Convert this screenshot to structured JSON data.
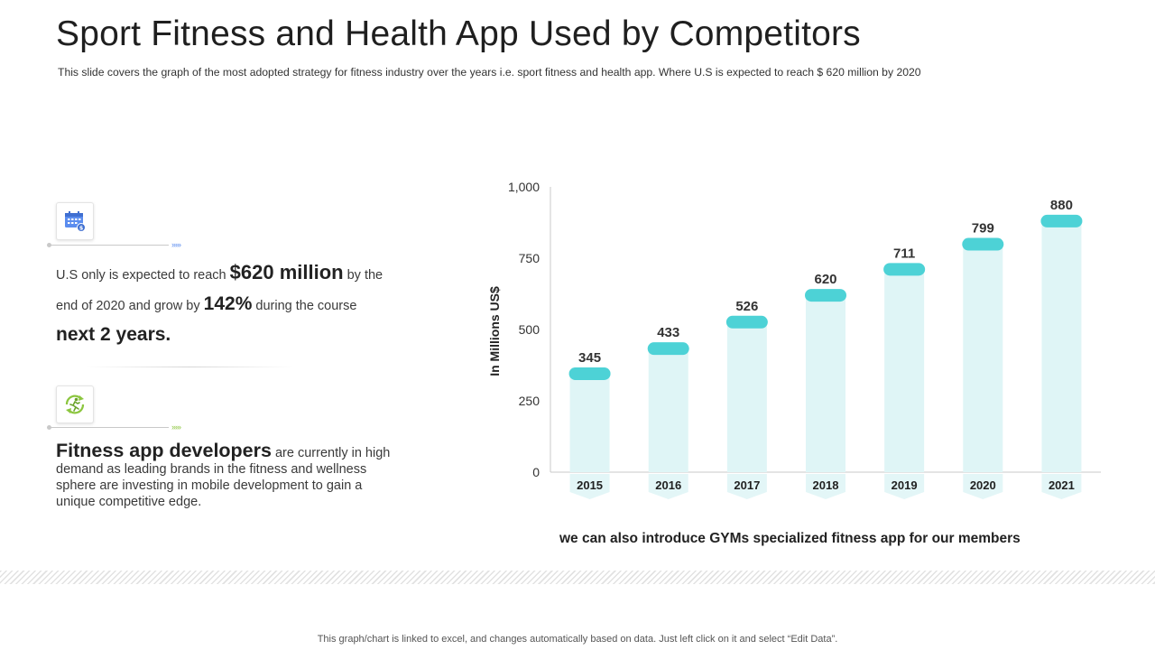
{
  "title": "Sport Fitness and Health App Used by Competitors",
  "subtitle": "This slide covers the graph of the most adopted strategy for fitness industry over the years i.e. sport fitness and health app. Where  U.S is expected to reach $ 620 million by 2020",
  "icons": {
    "block1": "calendar-dollar-icon",
    "block2": "runner-recycle-icon"
  },
  "block1": {
    "t1": "U.S only is expected to reach ",
    "v1": "$620 million",
    "t2": " by the end of 2020 and grow by ",
    "v2": "142%",
    "t3": "  during the course ",
    "v3": "next 2 years."
  },
  "block2": {
    "heading": "Fitness app developers",
    "text": " are currently in high demand as leading brands in the fitness and wellness sphere are investing in mobile development to gain a unique competitive edge."
  },
  "chart_data": {
    "type": "bar",
    "categories": [
      "2015",
      "2016",
      "2017",
      "2018",
      "2019",
      "2020",
      "2021"
    ],
    "values": [
      345,
      433,
      526,
      620,
      711,
      799,
      880
    ],
    "ylabel": "In Millions US$",
    "yticks": [
      "0",
      "250",
      "500",
      "750",
      "1,000"
    ],
    "ylim": [
      0,
      1000
    ],
    "grid": false,
    "colors": {
      "bar": "#dff5f6",
      "cap": "#4dd2d6",
      "tab": "#e3f6f7"
    }
  },
  "caption": "we can also introduce GYMs specialized fitness app for our members",
  "footer": "This graph/chart is linked to excel,  and changes automatically based on data. Just left click on it and select “Edit Data”.",
  "colors": {
    "blue_accent": "#5b8def",
    "green_accent": "#8cc63f"
  }
}
